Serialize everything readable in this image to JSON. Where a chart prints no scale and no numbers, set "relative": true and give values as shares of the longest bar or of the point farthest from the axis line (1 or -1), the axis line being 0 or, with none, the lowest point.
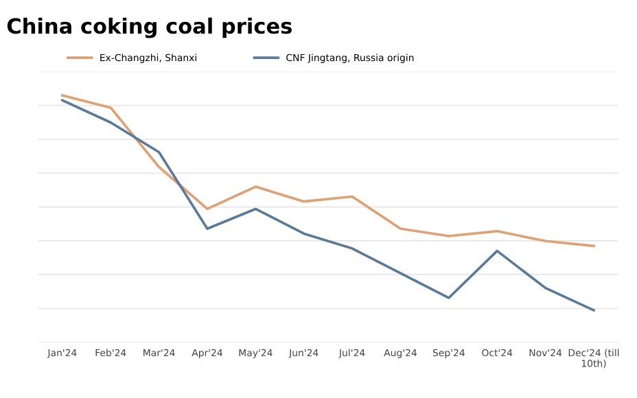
{
  "chart_data": {
    "type": "line",
    "title": "China coking coal prices",
    "categories": [
      "Jan'24",
      "Feb'24",
      "Mar'24",
      "Apr'24",
      "May'24",
      "Jun'24",
      "Jul'24",
      "Aug'24",
      "Sep'24",
      "Oct'24",
      "Nov'24",
      "Dec'24 (till\n10th)"
    ],
    "series": [
      {
        "name": "Ex-Changzhi, Shanxi",
        "color": "#e0a070",
        "values": [
          1,
          0.95,
          0.71,
          0.54,
          0.63,
          0.57,
          0.59,
          0.46,
          0.43,
          0.45,
          0.41,
          0.39
        ]
      },
      {
        "name": "CNF Jingtang, Russia origin",
        "color": "#5a7a9a",
        "values": [
          0.98,
          0.89,
          0.77,
          0.46,
          0.54,
          0.44,
          0.38,
          0.28,
          0.18,
          0.37,
          0.22,
          0.13
        ]
      }
    ],
    "relative": true,
    "grid": "y",
    "legend": "top",
    "marker": "none",
    "line_style": "solid"
  }
}
